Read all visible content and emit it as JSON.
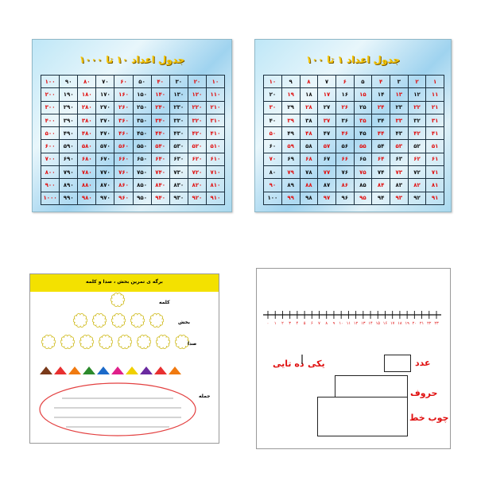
{
  "chart_1000": {
    "title": "جدول اعداد ۱۰ تا ۱۰۰۰",
    "rows": [
      [
        "۱۰",
        "۲۰",
        "۳۰",
        "۴۰",
        "۵۰",
        "۶۰",
        "۷۰",
        "۸۰",
        "۹۰",
        "۱۰۰"
      ],
      [
        "۱۱۰",
        "۱۲۰",
        "۱۳۰",
        "۱۴۰",
        "۱۵۰",
        "۱۶۰",
        "۱۷۰",
        "۱۸۰",
        "۱۹۰",
        "۲۰۰"
      ],
      [
        "۲۱۰",
        "۲۲۰",
        "۲۳۰",
        "۲۴۰",
        "۲۵۰",
        "۲۶۰",
        "۲۷۰",
        "۲۸۰",
        "۲۹۰",
        "۳۰۰"
      ],
      [
        "۳۱۰",
        "۳۲۰",
        "۳۳۰",
        "۳۴۰",
        "۳۵۰",
        "۳۶۰",
        "۳۷۰",
        "۳۸۰",
        "۳۹۰",
        "۴۰۰"
      ],
      [
        "۴۱۰",
        "۴۲۰",
        "۴۳۰",
        "۴۴۰",
        "۴۵۰",
        "۴۶۰",
        "۴۷۰",
        "۴۸۰",
        "۴۹۰",
        "۵۰۰"
      ],
      [
        "۵۱۰",
        "۵۲۰",
        "۵۳۰",
        "۵۴۰",
        "۵۵۰",
        "۵۶۰",
        "۵۷۰",
        "۵۸۰",
        "۵۹۰",
        "۶۰۰"
      ],
      [
        "۶۱۰",
        "۶۲۰",
        "۶۳۰",
        "۶۴۰",
        "۶۵۰",
        "۶۶۰",
        "۶۷۰",
        "۶۸۰",
        "۶۹۰",
        "۷۰۰"
      ],
      [
        "۷۱۰",
        "۷۲۰",
        "۷۳۰",
        "۷۴۰",
        "۷۵۰",
        "۷۶۰",
        "۷۷۰",
        "۷۸۰",
        "۷۹۰",
        "۸۰۰"
      ],
      [
        "۸۱۰",
        "۸۲۰",
        "۸۳۰",
        "۸۴۰",
        "۸۵۰",
        "۸۶۰",
        "۸۷۰",
        "۸۸۰",
        "۸۹۰",
        "۹۰۰"
      ],
      [
        "۹۱۰",
        "۹۲۰",
        "۹۳۰",
        "۹۴۰",
        "۹۵۰",
        "۹۶۰",
        "۹۷۰",
        "۹۸۰",
        "۹۹۰",
        "۱۰۰۰"
      ]
    ]
  },
  "chart_100": {
    "title": "جدول اعداد ۱ تا ۱۰۰",
    "rows": [
      [
        "۱",
        "۲",
        "۳",
        "۴",
        "۵",
        "۶",
        "۷",
        "۸",
        "۹",
        "۱۰"
      ],
      [
        "۱۱",
        "۱۲",
        "۱۳",
        "۱۴",
        "۱۵",
        "۱۶",
        "۱۷",
        "۱۸",
        "۱۹",
        "۲۰"
      ],
      [
        "۲۱",
        "۲۲",
        "۲۳",
        "۲۴",
        "۲۵",
        "۲۶",
        "۲۷",
        "۲۸",
        "۲۹",
        "۳۰"
      ],
      [
        "۳۱",
        "۳۲",
        "۳۳",
        "۳۴",
        "۳۵",
        "۳۶",
        "۳۷",
        "۳۸",
        "۳۹",
        "۴۰"
      ],
      [
        "۴۱",
        "۴۲",
        "۴۳",
        "۴۴",
        "۴۵",
        "۴۶",
        "۴۷",
        "۴۸",
        "۴۹",
        "۵۰"
      ],
      [
        "۵۱",
        "۵۲",
        "۵۳",
        "۵۴",
        "۵۵",
        "۵۶",
        "۵۷",
        "۵۸",
        "۵۹",
        "۶۰"
      ],
      [
        "۶۱",
        "۶۲",
        "۶۳",
        "۶۴",
        "۶۵",
        "۶۶",
        "۶۷",
        "۶۸",
        "۶۹",
        "۷۰"
      ],
      [
        "۷۱",
        "۷۲",
        "۷۳",
        "۷۴",
        "۷۵",
        "۷۶",
        "۷۷",
        "۷۸",
        "۷۹",
        "۸۰"
      ],
      [
        "۸۱",
        "۸۲",
        "۸۳",
        "۸۴",
        "۸۵",
        "۸۶",
        "۸۷",
        "۸۸",
        "۸۹",
        "۹۰"
      ],
      [
        "۹۱",
        "۹۲",
        "۹۳",
        "۹۴",
        "۹۵",
        "۹۶",
        "۹۷",
        "۹۸",
        "۹۹",
        "۱۰۰"
      ]
    ]
  },
  "worksheet": {
    "title": "برگه ی تمرین بخش ، صدا و کلمه",
    "label_word": "کلمه",
    "label_part": "بخش",
    "label_sound": "صدا",
    "label_sentence": "جمله",
    "colors": {
      "header": "#f3e100",
      "flower_outline": "#c9b200",
      "oval": "#e34040",
      "house_colors": [
        "#7a3a1a",
        "#e83030",
        "#f07a10",
        "#2c8a2c",
        "#1b6ac9",
        "#e0208a",
        "#f0d000",
        "#6a2aa0",
        "#e83030",
        "#f07a10"
      ]
    }
  },
  "place_value": {
    "number_line_ticks": [
      "۰",
      "۱",
      "۲",
      "۳",
      "۴",
      "۵",
      "۶",
      "۷",
      "۸",
      "۹",
      "۱۰",
      "۱۱",
      "۱۲",
      "۱۳",
      "۱۴",
      "۱۵",
      "۱۶",
      "۱۷",
      "۱۸",
      "۱۹",
      "۲۰",
      "۲۱",
      "۲۲",
      "۲۳"
    ],
    "label_ones": "یکی",
    "label_tens": "ده تایی",
    "label_number": "عدد",
    "label_letters": "حروف",
    "label_sticks": "چوب خط"
  }
}
